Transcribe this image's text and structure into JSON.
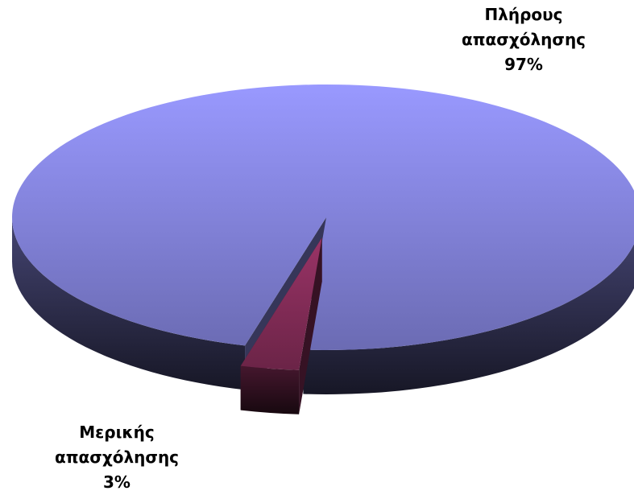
{
  "chart_data": {
    "type": "pie",
    "categories": [
      "Πλήρους απασχόλησης",
      "Μερικής απασχόλησης"
    ],
    "values": [
      97,
      3
    ],
    "value_labels": [
      "97%",
      "3%"
    ],
    "colors": [
      "#9999ff",
      "#993366"
    ]
  }
}
